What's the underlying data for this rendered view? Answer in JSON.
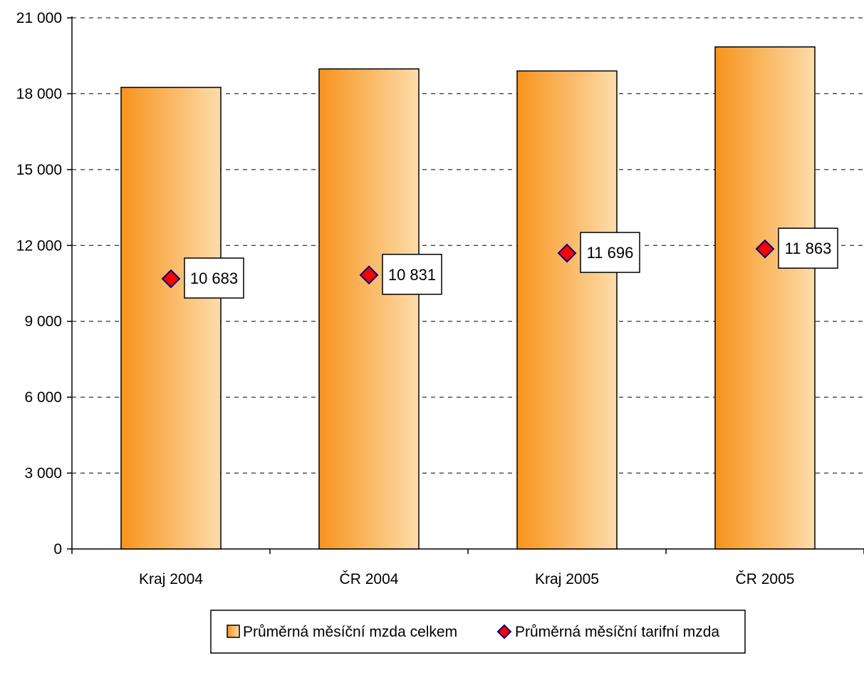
{
  "chart_data": {
    "type": "bar",
    "categories": [
      "Kraj 2004",
      "ČR 2004",
      "Kraj 2005",
      "ČR 2005"
    ],
    "series": [
      {
        "name": "Průměrná měsíční mzda celkem",
        "type": "bar",
        "values": [
          18250,
          18980,
          18900,
          19850
        ],
        "color_dark": "#f7941d",
        "color_light": "#fddcaa"
      },
      {
        "name": "Průměrná měsíční tarifní mzda",
        "type": "marker",
        "marker": "diamond",
        "values": [
          10683,
          10831,
          11696,
          11863
        ],
        "labels": [
          "10 683",
          "10 831",
          "11 696",
          "11 863"
        ],
        "color": "#ff0000",
        "edge_color": "#000080"
      }
    ],
    "ylim": [
      0,
      21000
    ],
    "yticks": [
      0,
      3000,
      6000,
      9000,
      12000,
      15000,
      18000,
      21000
    ],
    "ytick_labels": [
      "0",
      "3 000",
      "6 000",
      "9 000",
      "12 000",
      "15 000",
      "18 000",
      "21 000"
    ],
    "title": "",
    "xlabel": "",
    "ylabel": "",
    "grid": true,
    "legend": "bottom"
  }
}
